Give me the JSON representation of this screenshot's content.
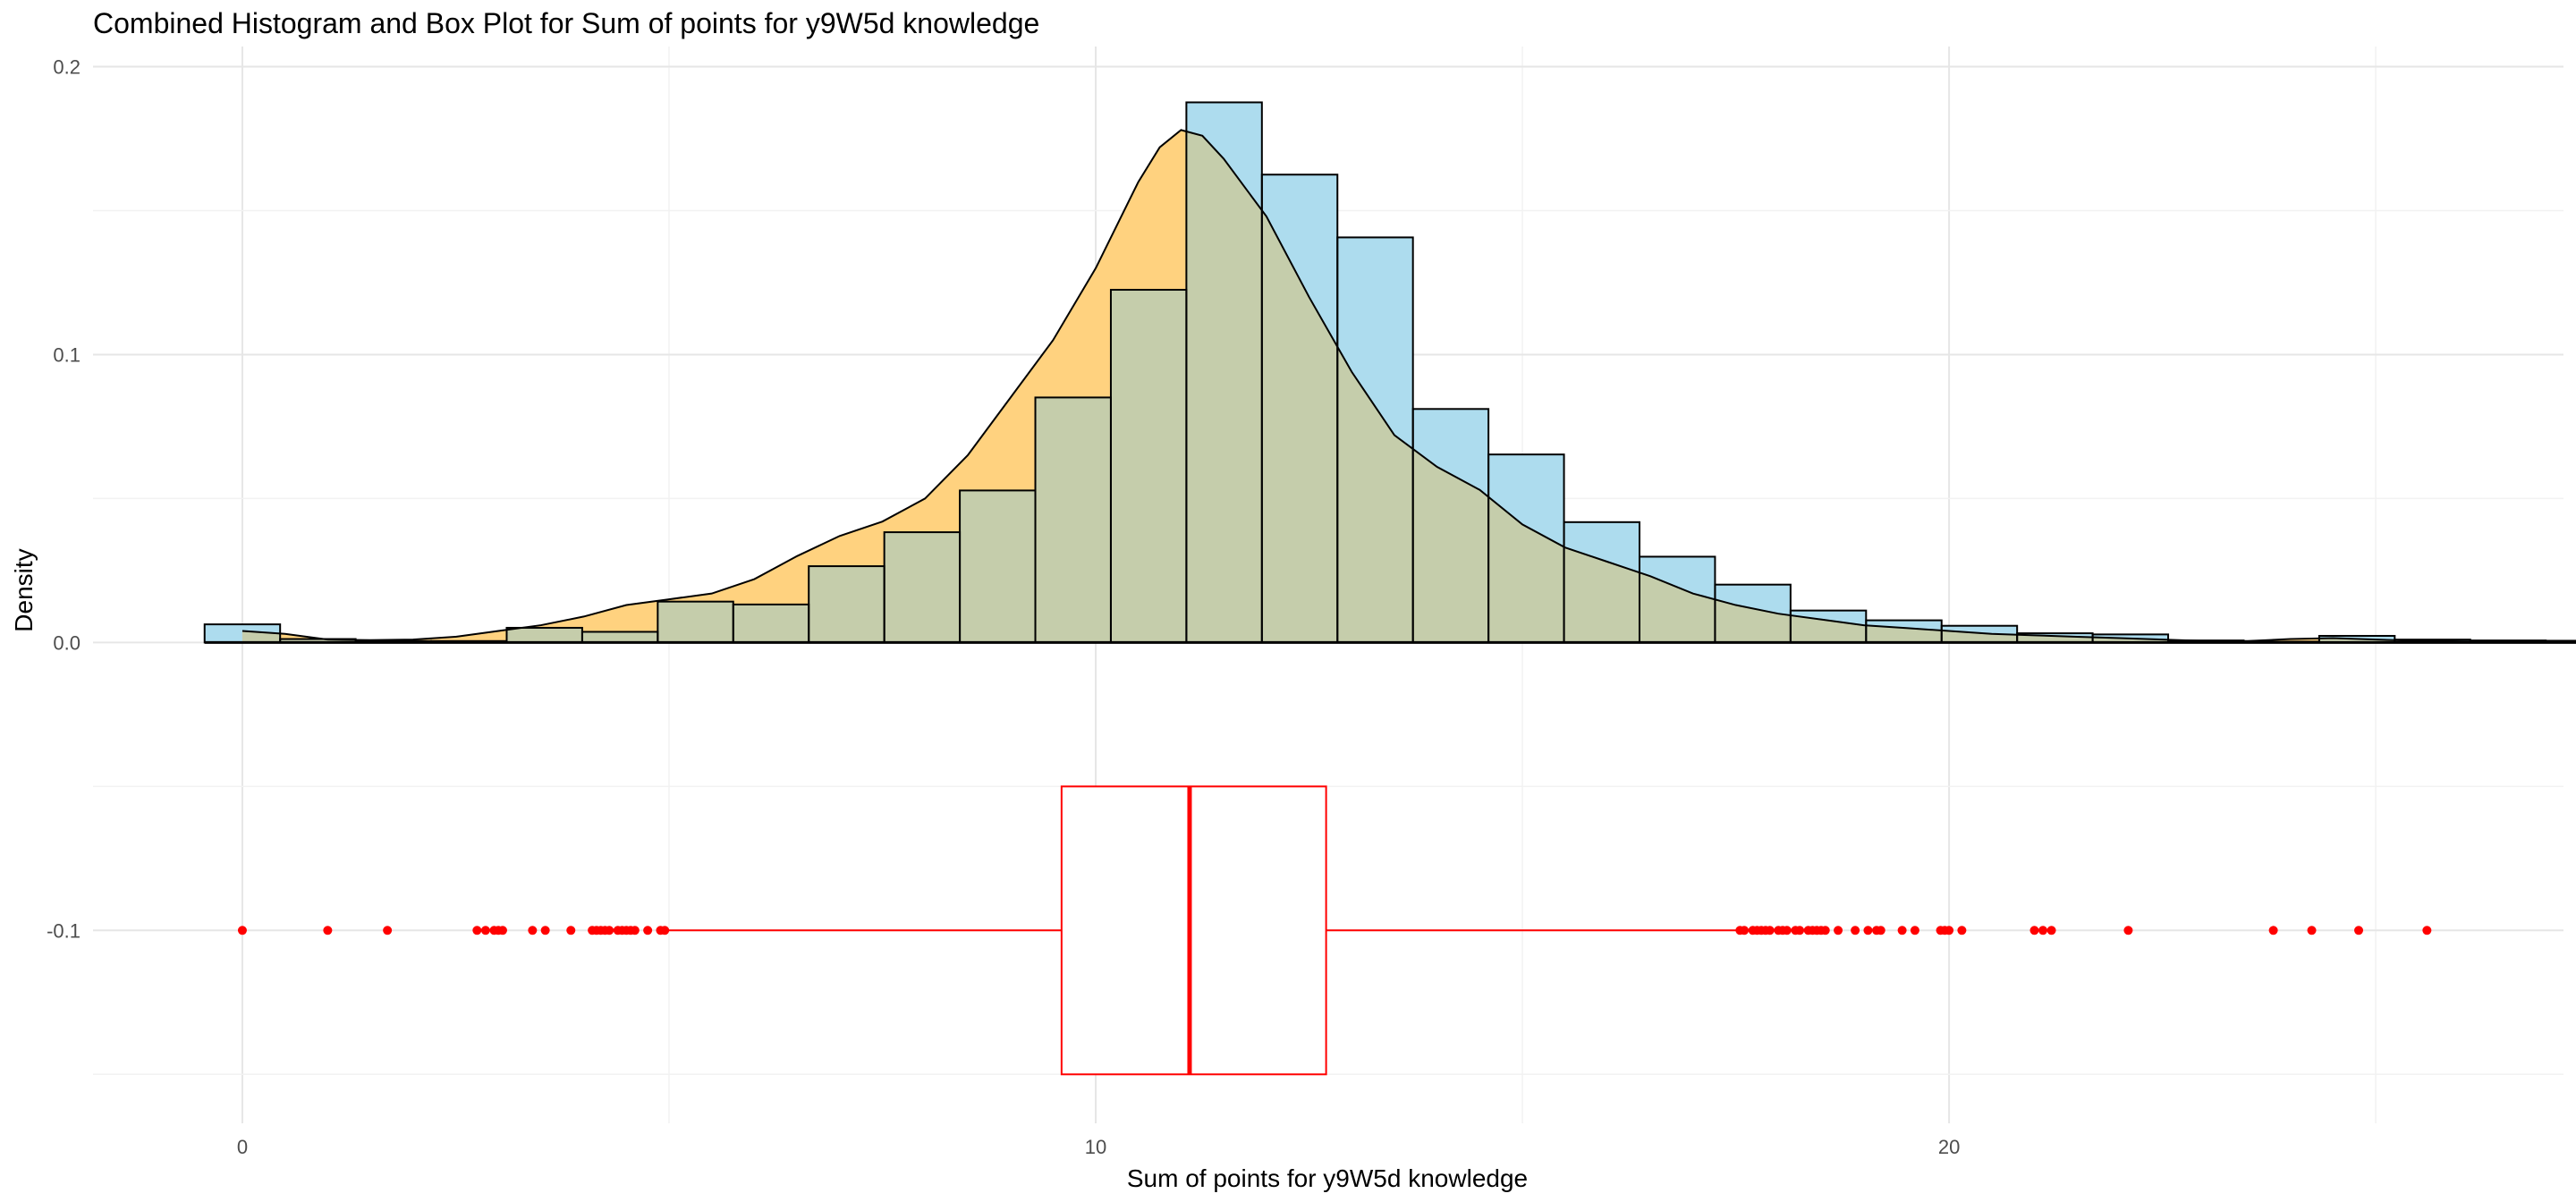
{
  "chart_data": {
    "type": "histogram+density+boxplot",
    "title": "Combined Histogram and Box Plot for Sum of points for y9W5d knowledge",
    "xlabel": "Sum of points for y9W5d knowledge",
    "ylabel": "Density",
    "xlim": [
      -1.75,
      27.2
    ],
    "ylim": [
      -0.167,
      0.207
    ],
    "x_ticks": [
      0,
      10,
      20
    ],
    "y_ticks": [
      {
        "value": 0.2,
        "label": "0.2"
      },
      {
        "value": 0.1,
        "label": "0.1"
      },
      {
        "value": 0.0,
        "label": "0.0"
      },
      {
        "value": -0.1,
        "label": "-0.1"
      }
    ],
    "grid": true,
    "colors": {
      "histogram_fill": "#ADDCEE",
      "density_fill": "#FFD27F",
      "overlap_fill": "#C5CDAB",
      "outline": "#000000",
      "boxplot": "#FF0000"
    },
    "histogram": {
      "bin_width": 0.885,
      "first_bin_center": 0.0,
      "values": [
        0.0063,
        0.0012,
        0.0005,
        0.0005,
        0.0051,
        0.0037,
        0.0142,
        0.0132,
        0.0265,
        0.0383,
        0.0528,
        0.0851,
        0.1225,
        0.1876,
        0.1625,
        0.1407,
        0.0811,
        0.0653,
        0.0418,
        0.0298,
        0.0201,
        0.0111,
        0.0077,
        0.0058,
        0.0032,
        0.0028,
        0.0007,
        0.0003,
        0.0023,
        0.001,
        0.0007,
        0.0006
      ]
    },
    "density": {
      "x": [
        0.0,
        0.5,
        1.0,
        1.5,
        2.0,
        2.5,
        3.0,
        3.5,
        4.0,
        4.5,
        5.0,
        5.5,
        6.0,
        6.5,
        7.0,
        7.5,
        8.0,
        8.5,
        9.0,
        9.5,
        10.0,
        10.5,
        10.75,
        11.0,
        11.25,
        11.5,
        12.0,
        12.5,
        13.0,
        13.5,
        14.0,
        14.5,
        15.0,
        15.5,
        16.0,
        16.5,
        17.0,
        17.5,
        18.0,
        18.5,
        19.0,
        19.5,
        20.0,
        20.5,
        21.0,
        21.5,
        22.0,
        22.5,
        23.0,
        23.5,
        24.0,
        24.5,
        25.0,
        25.5,
        26.0,
        26.5
      ],
      "y": [
        0.004,
        0.003,
        0.001,
        0.0008,
        0.001,
        0.002,
        0.004,
        0.006,
        0.009,
        0.013,
        0.015,
        0.017,
        0.022,
        0.03,
        0.037,
        0.042,
        0.05,
        0.065,
        0.085,
        0.105,
        0.13,
        0.16,
        0.172,
        0.178,
        0.176,
        0.168,
        0.148,
        0.12,
        0.094,
        0.072,
        0.061,
        0.053,
        0.041,
        0.033,
        0.028,
        0.023,
        0.017,
        0.013,
        0.01,
        0.008,
        0.006,
        0.005,
        0.004,
        0.003,
        0.0025,
        0.002,
        0.0015,
        0.001,
        0.0005,
        0.0005,
        0.0012,
        0.0015,
        0.001,
        0.0006,
        0.0004,
        0.0003
      ]
    },
    "boxplot": {
      "y_center": -0.1,
      "y_top": -0.05,
      "y_bottom": -0.15,
      "q1": 9.6,
      "median": 11.1,
      "q3": 12.7,
      "whisker_low": 5.0,
      "whisker_high": 17.5,
      "outliers": [
        0.0,
        1.0,
        1.7,
        2.75,
        2.85,
        2.95,
        3.0,
        3.05,
        3.4,
        3.55,
        3.85,
        4.1,
        4.15,
        4.2,
        4.25,
        4.3,
        4.4,
        4.45,
        4.5,
        4.55,
        4.6,
        4.75,
        4.9,
        4.95,
        17.55,
        17.6,
        17.7,
        17.75,
        17.8,
        17.85,
        17.9,
        18.0,
        18.05,
        18.1,
        18.2,
        18.25,
        18.35,
        18.4,
        18.45,
        18.5,
        18.55,
        18.7,
        18.9,
        19.05,
        19.15,
        19.2,
        19.45,
        19.6,
        19.9,
        19.95,
        20.0,
        20.15,
        21.0,
        21.1,
        21.2,
        22.1,
        23.8,
        24.25,
        24.8,
        25.6
      ]
    }
  }
}
